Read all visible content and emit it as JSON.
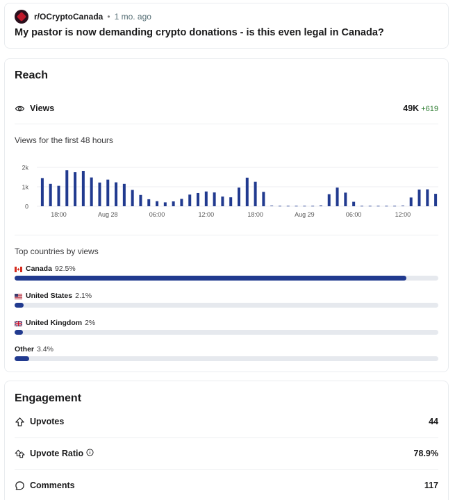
{
  "post": {
    "subreddit": "r/OCryptoCanada",
    "separator": "•",
    "time": "1 mo. ago",
    "title": "My pastor is now demanding crypto donations - is this even legal in Canada?"
  },
  "reach": {
    "title": "Reach",
    "views_label": "Views",
    "views_value": "49K",
    "views_delta": "+619",
    "chart_label": "Views for the first 48 hours",
    "countries_label": "Top countries by views",
    "countries": [
      {
        "name": "Canada",
        "pct_label": "92.5%",
        "pct": 92.5,
        "flag": "ca"
      },
      {
        "name": "United States",
        "pct_label": "2.1%",
        "pct": 2.1,
        "flag": "us"
      },
      {
        "name": "United Kingdom",
        "pct_label": "2%",
        "pct": 2,
        "flag": "uk"
      },
      {
        "name": "Other",
        "pct_label": "3.4%",
        "pct": 3.4,
        "flag": ""
      }
    ]
  },
  "chart_data": {
    "type": "bar",
    "ylim": [
      0,
      2000
    ],
    "y_ticks": [
      {
        "value": 0,
        "label": "0"
      },
      {
        "value": 1000,
        "label": "1k"
      },
      {
        "value": 2000,
        "label": "2k"
      }
    ],
    "values": [
      1450,
      1150,
      1050,
      1850,
      1750,
      1820,
      1480,
      1220,
      1370,
      1230,
      1150,
      840,
      580,
      360,
      260,
      200,
      250,
      380,
      600,
      680,
      760,
      710,
      500,
      460,
      960,
      1470,
      1260,
      740,
      30,
      20,
      20,
      20,
      20,
      20,
      40,
      620,
      960,
      700,
      230,
      20,
      20,
      20,
      20,
      20,
      30,
      450,
      860,
      870,
      640
    ],
    "x_tick_labels": [
      {
        "index": 2,
        "label": "18:00"
      },
      {
        "index": 8,
        "label": "Aug 28"
      },
      {
        "index": 14,
        "label": "06:00"
      },
      {
        "index": 20,
        "label": "12:00"
      },
      {
        "index": 26,
        "label": "18:00"
      },
      {
        "index": 32,
        "label": "Aug 29"
      },
      {
        "index": 38,
        "label": "06:00"
      },
      {
        "index": 44,
        "label": "12:00"
      }
    ],
    "color": "#213a8f"
  },
  "engagement": {
    "title": "Engagement",
    "upvotes_label": "Upvotes",
    "upvotes_value": "44",
    "ratio_label": "Upvote Ratio",
    "ratio_value": "78.9%",
    "comments_label": "Comments",
    "comments_value": "117"
  },
  "colors": {
    "bar": "#213a8f",
    "track": "#e6e9ee",
    "delta": "#2e7d32"
  }
}
